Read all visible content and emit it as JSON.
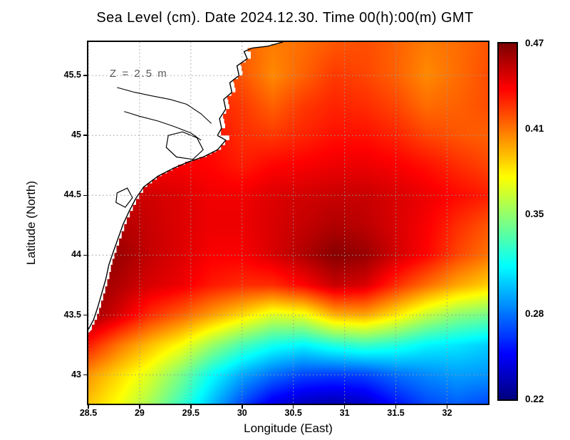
{
  "title": "Sea Level (cm). Date 2024.12.30. Time 00(h):00(m) GMT",
  "annotation": "Z = 2.5 m",
  "axes": {
    "x_label": "Longitude (East)",
    "y_label": "Latitude (North)",
    "x_ticks": [
      "28.5",
      "29",
      "29.5",
      "30",
      "30.5",
      "31",
      "31.5",
      "32"
    ],
    "x_tick_values": [
      28.5,
      29,
      29.5,
      30,
      30.5,
      31,
      31.5,
      32
    ],
    "y_ticks": [
      "43",
      "43.5",
      "44",
      "44.5",
      "45",
      "45.5"
    ],
    "y_tick_values": [
      43,
      43.5,
      44,
      44.5,
      45,
      45.5
    ]
  },
  "colorbar": {
    "labels": [
      "0.47",
      "0.41",
      "0.35",
      "0.28",
      "0.22"
    ],
    "values": [
      0.47,
      0.41,
      0.35,
      0.28,
      0.22
    ]
  },
  "chart_data": {
    "type": "heatmap",
    "title": "Sea Level (cm). Date 2024.12.30. Time 00(h):00(m) GMT",
    "xlabel": "Longitude (East)",
    "ylabel": "Latitude (North)",
    "annotation": "Z = 2.5 m",
    "colormap": "jet",
    "zlim": [
      0.22,
      0.47
    ],
    "xlim": [
      28.5,
      32.4
    ],
    "ylim": [
      42.76,
      45.78
    ],
    "colorbar_ticks": [
      0.47,
      0.41,
      0.35,
      0.28,
      0.22
    ],
    "grid": true,
    "x": [
      28.5,
      28.8,
      29.1,
      29.4,
      29.7,
      30.0,
      30.3,
      30.6,
      30.9,
      31.2,
      31.5,
      31.8,
      32.1,
      32.4
    ],
    "y": [
      45.75,
      45.5,
      45.25,
      45.0,
      44.75,
      44.5,
      44.25,
      44.0,
      43.75,
      43.5,
      43.25,
      43.0,
      42.75
    ],
    "z": [
      [
        0.42,
        0.42,
        0.42,
        0.42,
        0.42,
        0.415,
        0.408,
        0.412,
        0.418,
        0.42,
        0.415,
        0.408,
        0.412,
        0.418
      ],
      [
        0.425,
        0.425,
        0.425,
        0.425,
        0.425,
        0.418,
        0.405,
        0.415,
        0.425,
        0.422,
        0.415,
        0.405,
        0.412,
        0.42
      ],
      [
        0.43,
        0.43,
        0.43,
        0.43,
        0.43,
        0.425,
        0.415,
        0.425,
        0.43,
        0.428,
        0.422,
        0.412,
        0.415,
        0.42
      ],
      [
        0.435,
        0.435,
        0.435,
        0.435,
        0.435,
        0.428,
        0.425,
        0.43,
        0.435,
        0.435,
        0.43,
        0.422,
        0.418,
        0.415
      ],
      [
        0.44,
        0.44,
        0.44,
        0.44,
        0.438,
        0.432,
        0.438,
        0.44,
        0.443,
        0.443,
        0.44,
        0.435,
        0.428,
        0.422
      ],
      [
        0.452,
        0.452,
        0.45,
        0.447,
        0.442,
        0.442,
        0.447,
        0.45,
        0.452,
        0.452,
        0.448,
        0.443,
        0.437,
        0.432
      ],
      [
        0.46,
        0.458,
        0.452,
        0.447,
        0.443,
        0.443,
        0.448,
        0.453,
        0.458,
        0.455,
        0.448,
        0.44,
        0.428,
        0.418
      ],
      [
        0.465,
        0.463,
        0.453,
        0.447,
        0.44,
        0.44,
        0.448,
        0.458,
        0.468,
        0.464,
        0.45,
        0.438,
        0.422,
        0.41
      ],
      [
        0.467,
        0.458,
        0.448,
        0.443,
        0.433,
        0.428,
        0.428,
        0.438,
        0.452,
        0.448,
        0.428,
        0.412,
        0.398,
        0.388
      ],
      [
        0.464,
        0.448,
        0.428,
        0.415,
        0.4,
        0.385,
        0.368,
        0.372,
        0.395,
        0.398,
        0.382,
        0.362,
        0.348,
        0.342
      ],
      [
        0.432,
        0.41,
        0.392,
        0.376,
        0.352,
        0.332,
        0.318,
        0.312,
        0.322,
        0.328,
        0.322,
        0.312,
        0.308,
        0.302
      ],
      [
        0.402,
        0.385,
        0.368,
        0.344,
        0.315,
        0.293,
        0.278,
        0.268,
        0.266,
        0.268,
        0.278,
        0.285,
        0.29,
        0.288
      ],
      [
        0.39,
        0.374,
        0.354,
        0.328,
        0.298,
        0.268,
        0.244,
        0.234,
        0.23,
        0.236,
        0.254,
        0.268,
        0.274,
        0.268
      ]
    ],
    "map": {
      "coast": [
        [
          30.4,
          45.78
        ],
        [
          30.25,
          45.745
        ],
        [
          30.1,
          45.73
        ],
        [
          30.02,
          45.7
        ],
        [
          30.05,
          45.64
        ],
        [
          29.95,
          45.58
        ],
        [
          29.97,
          45.5
        ],
        [
          29.88,
          45.44
        ],
        [
          29.9,
          45.36
        ],
        [
          29.82,
          45.3
        ],
        [
          29.84,
          45.22
        ],
        [
          29.78,
          45.14
        ],
        [
          29.8,
          45.06
        ],
        [
          29.76,
          45.0
        ],
        [
          29.84,
          44.96
        ],
        [
          29.76,
          44.88
        ],
        [
          29.62,
          44.82
        ],
        [
          29.48,
          44.78
        ],
        [
          29.34,
          44.73
        ],
        [
          29.18,
          44.66
        ],
        [
          29.04,
          44.57
        ],
        [
          28.96,
          44.47
        ],
        [
          28.9,
          44.37
        ],
        [
          28.84,
          44.26
        ],
        [
          28.79,
          44.14
        ],
        [
          28.74,
          44.02
        ],
        [
          28.7,
          43.92
        ],
        [
          28.67,
          43.8
        ],
        [
          28.63,
          43.68
        ],
        [
          28.59,
          43.56
        ],
        [
          28.55,
          43.46
        ],
        [
          28.5,
          43.38
        ]
      ],
      "lakes": [
        [
          [
            29.28,
            45.0
          ],
          [
            29.42,
            45.03
          ],
          [
            29.56,
            44.98
          ],
          [
            29.62,
            44.88
          ],
          [
            29.52,
            44.8
          ],
          [
            29.36,
            44.82
          ],
          [
            29.26,
            44.9
          ]
        ],
        [
          [
            28.78,
            44.52
          ],
          [
            28.88,
            44.56
          ],
          [
            28.93,
            44.48
          ],
          [
            28.86,
            44.4
          ],
          [
            28.77,
            44.44
          ]
        ]
      ],
      "rivers": [
        [
          [
            28.78,
            45.4
          ],
          [
            28.95,
            45.36
          ],
          [
            29.12,
            45.33
          ],
          [
            29.3,
            45.3
          ],
          [
            29.46,
            45.26
          ],
          [
            29.6,
            45.18
          ],
          [
            29.7,
            45.1
          ]
        ],
        [
          [
            28.85,
            45.2
          ],
          [
            29.0,
            45.16
          ],
          [
            29.18,
            45.12
          ],
          [
            29.35,
            45.07
          ],
          [
            29.5,
            45.02
          ],
          [
            29.6,
            44.96
          ]
        ]
      ]
    }
  }
}
